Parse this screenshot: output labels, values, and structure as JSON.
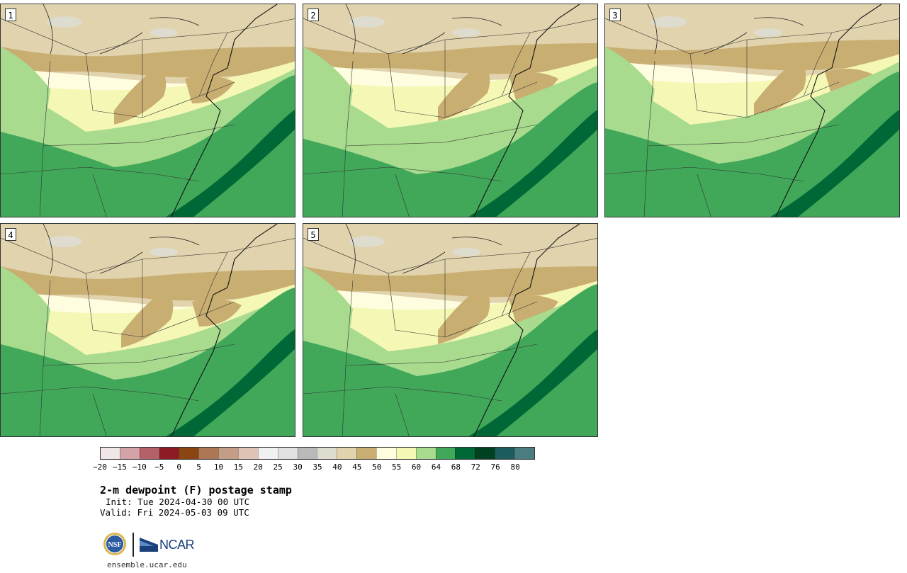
{
  "panels": [
    {
      "label": "1",
      "variant": 0
    },
    {
      "label": "2",
      "variant": 1
    },
    {
      "label": "3",
      "variant": 2
    },
    {
      "label": "4",
      "variant": 3
    },
    {
      "label": "5",
      "variant": 4
    }
  ],
  "colorbar": {
    "colors": [
      "#f1e6e6",
      "#d3a3a8",
      "#b46169",
      "#8c1b25",
      "#8b4513",
      "#ad7756",
      "#c49d87",
      "#dfc4b6",
      "#f1f1f1",
      "#e1e1e1",
      "#b9b9b9",
      "#dedcce",
      "#e0d3ad",
      "#c9ae72",
      "#fffde0",
      "#f5f8b5",
      "#a8db8e",
      "#41a85a",
      "#006836",
      "#00421f",
      "#1d5b5e",
      "#4a7c80"
    ],
    "tick_labels": [
      "−20",
      "−15",
      "−10",
      "−5",
      "0",
      "5",
      "10",
      "15",
      "20",
      "25",
      "30",
      "35",
      "40",
      "45",
      "50",
      "55",
      "60",
      "64",
      "68",
      "72",
      "76",
      "80"
    ]
  },
  "legend_colors": {
    "dry": "#e0d3ad",
    "dry_dark": "#c9ae72",
    "grey": "#dedcce",
    "pale": "#fffde0",
    "yellow": "#f5f8b5",
    "light_green": "#a8db8e",
    "green": "#41a85a",
    "dark_green": "#006836"
  },
  "title": "2-m dewpoint (F) postage stamp",
  "init_text": "Init: Tue 2024-04-30 00 UTC",
  "valid_text": "Valid: Fri 2024-05-03 09 UTC",
  "logos": {
    "nsf": "NSF",
    "ncar": "NCAR"
  },
  "site": "ensemble.ucar.edu"
}
